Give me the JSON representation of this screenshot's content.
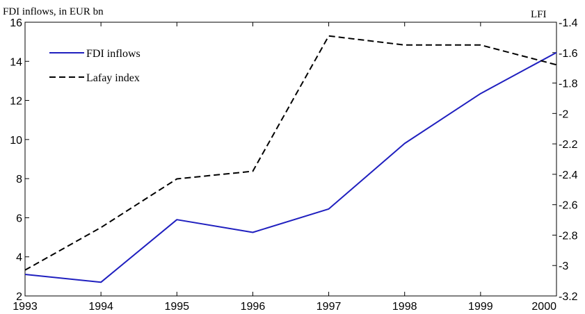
{
  "chart_data": {
    "type": "line",
    "x": [
      1993,
      1994,
      1995,
      1996,
      1997,
      1998,
      1999,
      2000
    ],
    "left_axis": {
      "title": "FDI inflows, in EUR bn",
      "ylim": [
        2,
        16
      ],
      "ticks": [
        2,
        4,
        6,
        8,
        10,
        12,
        14,
        16
      ]
    },
    "right_axis": {
      "title": "LFI",
      "ylim": [
        -3.2,
        -1.4
      ],
      "ticks": [
        -3.2,
        -3,
        -2.8,
        -2.6,
        -2.4,
        -2.2,
        -2,
        -1.8,
        -1.6,
        -1.4
      ],
      "tick_labels": [
        "-3.2",
        "-3",
        "-2.8",
        "-2.6",
        "-2.4",
        "-2.2",
        "-2",
        "-1.8",
        "-1.6",
        "-1.4"
      ]
    },
    "x_tick_labels": [
      "1993",
      "1994",
      "1995",
      "1996",
      "1997",
      "1998",
      "1999",
      "2000"
    ],
    "series": [
      {
        "name": "FDI inflows",
        "axis": "left",
        "color": "#1f1fbf",
        "dash": "solid",
        "values": [
          3.1,
          2.7,
          5.9,
          5.25,
          6.45,
          9.8,
          12.35,
          14.45
        ]
      },
      {
        "name": "Lafay index",
        "axis": "right",
        "color": "#000000",
        "dash": "dashed",
        "values": [
          -3.03,
          -2.75,
          -2.43,
          -2.38,
          -1.49,
          -1.55,
          -1.55,
          -1.68
        ]
      }
    ],
    "legend_position": "top-left",
    "grid": false
  }
}
